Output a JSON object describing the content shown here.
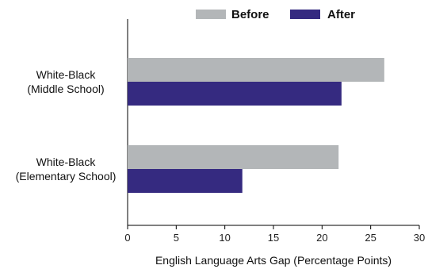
{
  "chart_data": {
    "type": "bar",
    "orientation": "horizontal",
    "categories": [
      "White-Black\n(Middle School)",
      "White-Black\n(Elementary School)"
    ],
    "series": [
      {
        "name": "Before",
        "color": "#b3b6b8",
        "values": [
          26.4,
          21.7
        ]
      },
      {
        "name": "After",
        "color": "#352a80",
        "values": [
          22.0,
          11.8
        ]
      }
    ],
    "xlabel": "English Language Arts Gap (Percentage Points)",
    "ylabel": "",
    "xlim": [
      0,
      30
    ],
    "xticks": [
      "0",
      "5",
      "10",
      "15",
      "20",
      "25",
      "30"
    ],
    "grid": false,
    "legend_position": "top"
  }
}
